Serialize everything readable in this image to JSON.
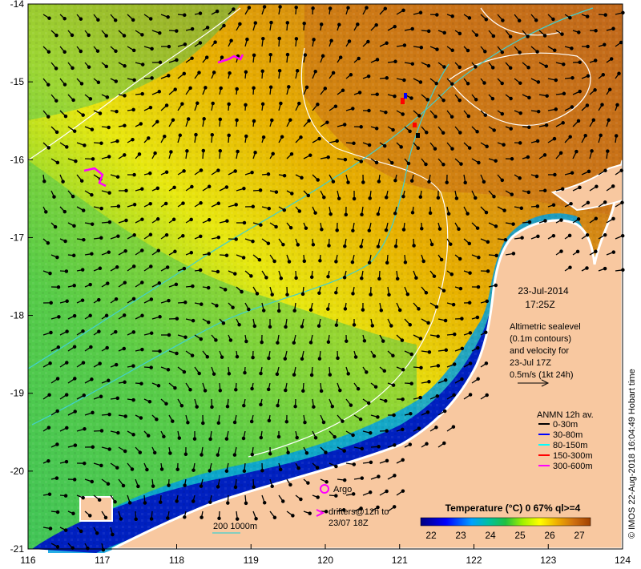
{
  "map": {
    "lon_ticks": [
      "116",
      "117",
      "118",
      "119",
      "120",
      "121",
      "122",
      "123",
      "124"
    ],
    "lat_ticks": [
      "-14",
      "-15",
      "-16",
      "-17",
      "-18",
      "-19",
      "-20",
      "-21"
    ],
    "date": "23-Jul-2014",
    "time": "17:25Z",
    "altimetry_lines": [
      "Altimetric sealevel",
      "(0.1m contours)",
      "and velocity for",
      "23-Jul 17Z",
      "0.5m/s (1kt 24h)"
    ],
    "anmn_title": "ANMN 12h av.",
    "anmn_items": [
      {
        "label": "0-30m",
        "color": "#000000"
      },
      {
        "label": "30-80m",
        "color": "#0000ff"
      },
      {
        "label": "80-150m",
        "color": "#00ffff"
      },
      {
        "label": "150-300m",
        "color": "#ff0000"
      },
      {
        "label": "300-600m",
        "color": "#ff00ff"
      }
    ],
    "argo_label": "Argo",
    "drifters_lines": [
      "drifters@12h to",
      "23/07 18Z"
    ],
    "scale_label": "200  1000m",
    "colorbar_title": "Temperature (°C) 0 67% ql>=4",
    "colorbar_ticks": [
      "22",
      "23",
      "24",
      "25",
      "26",
      "27"
    ],
    "colorbar_colors": [
      "#000080",
      "#0000ff",
      "#0080ff",
      "#00c0c0",
      "#00c060",
      "#40e000",
      "#c0f000",
      "#ffff00",
      "#f0c000",
      "#e09000",
      "#c06000",
      "#a04000"
    ],
    "credit": "© IMOS 22-Aug-2018 16:04:49 Hobart time"
  }
}
